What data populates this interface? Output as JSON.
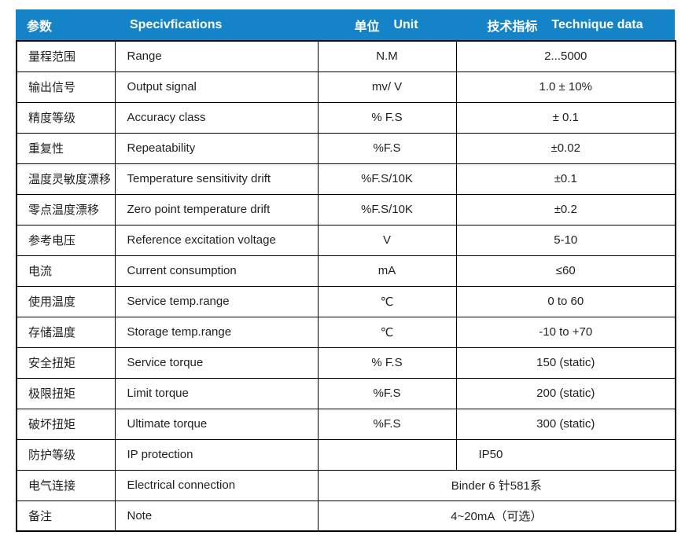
{
  "colors": {
    "header_bg": "#1583c8",
    "header_text": "#ffffff",
    "body_text": "#1f1f1f",
    "border": "#000000"
  },
  "header": {
    "param": "参数",
    "specifications": "Specivfications",
    "unit_zh": "单位",
    "unit_en": "Unit",
    "data_zh": "技术指标",
    "data_en": "Technique data"
  },
  "rows": [
    {
      "param_zh": "量程范围",
      "param_en": "Range",
      "unit": "N.M",
      "value": "2...5000"
    },
    {
      "param_zh": "输出信号",
      "param_en": "Output signal",
      "unit": "mv/ V",
      "value": "1.0 ± 10%"
    },
    {
      "param_zh": "精度等级",
      "param_en": "Accuracy class",
      "unit": "% F.S",
      "value": "± 0.1"
    },
    {
      "param_zh": "重复性",
      "param_en": "Repeatability",
      "unit": "%F.S",
      "value": "±0.02"
    },
    {
      "param_zh": "温度灵敏度漂移",
      "param_en": "Temperature sensitivity drift",
      "unit": "%F.S/10K",
      "value": "±0.1"
    },
    {
      "param_zh": "零点温度漂移",
      "param_en": "Zero point temperature drift",
      "unit": "%F.S/10K",
      "value": "±0.2"
    },
    {
      "param_zh": "参考电压",
      "param_en": "Reference excitation voltage",
      "unit": "V",
      "value": "5-10"
    },
    {
      "param_zh": "电流",
      "param_en": "Current consumption",
      "unit": "mA",
      "value": "≤60"
    },
    {
      "param_zh": "使用温度",
      "param_en": "Service temp.range",
      "unit": "℃",
      "value": "0 to 60"
    },
    {
      "param_zh": "存储温度",
      "param_en": "Storage temp.range",
      "unit": "℃",
      "value": "-10 to +70"
    },
    {
      "param_zh": "安全扭矩",
      "param_en": "Service torque",
      "unit": "% F.S",
      "value": "150 (static)"
    },
    {
      "param_zh": "极限扭矩",
      "param_en": "Limit torque",
      "unit": "%F.S",
      "value": "200 (static)"
    },
    {
      "param_zh": "破坏扭矩",
      "param_en": "Ultimate torque",
      "unit": "%F.S",
      "value": "300 (static)"
    },
    {
      "param_zh": "防护等级",
      "param_en": "IP protection",
      "unit": "",
      "value": "IP50"
    },
    {
      "param_zh": "电气连接",
      "param_en": "Electrical connection",
      "merged_value": "Binder 6 针581系"
    },
    {
      "param_zh": "备注",
      "param_en": "Note",
      "merged_value": "4~20mA（可选）"
    }
  ]
}
